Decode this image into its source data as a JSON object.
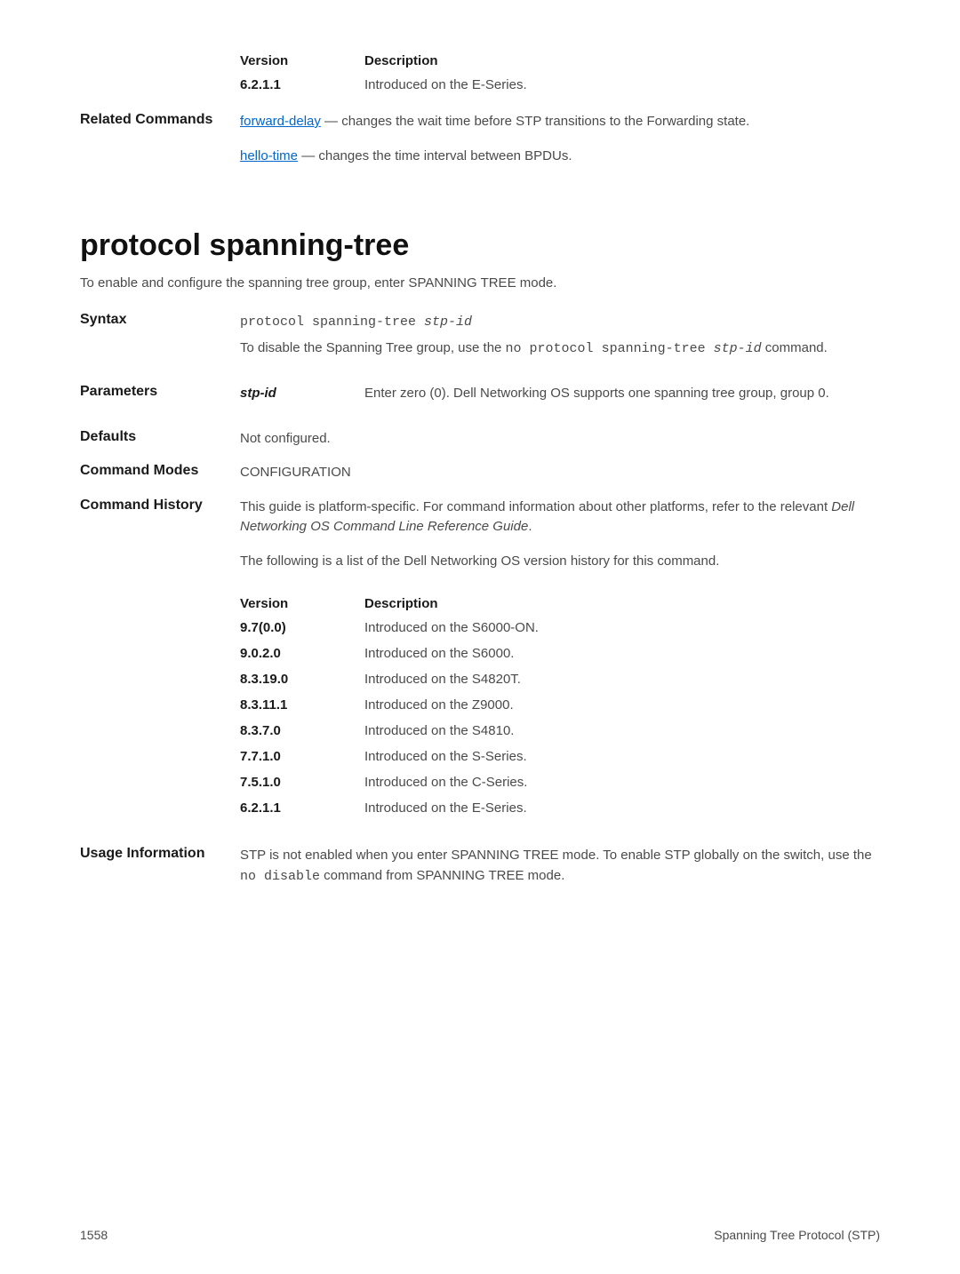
{
  "top": {
    "vh_header_version": "Version",
    "vh_header_desc": "Description",
    "vh_rows": [
      {
        "ver": "6.2.1.1",
        "desc": "Introduced on the E-Series."
      }
    ],
    "related_label": "Related Commands",
    "related1_link": "forward-delay",
    "related1_rest": " — changes the wait time before STP transitions to the Forwarding state.",
    "related2_link": "hello-time",
    "related2_rest": " — changes the time interval between BPDUs."
  },
  "section_title": "protocol spanning-tree",
  "intro": "To enable and configure the spanning tree group, enter SPANNING TREE mode.",
  "syntax": {
    "label": "Syntax",
    "cmd_prefix": "protocol spanning-tree ",
    "cmd_italic": "stp-id",
    "desc_pre": "To disable the Spanning Tree group, use the ",
    "desc_mono": "no protocol spanning-tree ",
    "desc_mono_italic": "stp-id",
    "desc_post": " command."
  },
  "parameters": {
    "label": "Parameters",
    "name": "stp-id",
    "desc": "Enter zero (0). Dell Networking OS supports one spanning tree group, group 0."
  },
  "defaults": {
    "label": "Defaults",
    "value": "Not configured."
  },
  "cmd_modes": {
    "label": "Command Modes",
    "value": "CONFIGURATION"
  },
  "cmd_history": {
    "label": "Command History",
    "p1_pre": "This guide is platform-specific. For command information about other platforms, refer to the relevant ",
    "p1_italic": "Dell Networking OS Command Line Reference Guide",
    "p1_post": ".",
    "p2": "The following is a list of the Dell Networking OS version history for this command.",
    "vh_header_version": "Version",
    "vh_header_desc": "Description",
    "rows": [
      {
        "ver": "9.7(0.0)",
        "desc": "Introduced on the S6000-ON."
      },
      {
        "ver": "9.0.2.0",
        "desc": "Introduced on the S6000."
      },
      {
        "ver": "8.3.19.0",
        "desc": "Introduced on the S4820T."
      },
      {
        "ver": "8.3.11.1",
        "desc": "Introduced on the Z9000."
      },
      {
        "ver": "8.3.7.0",
        "desc": "Introduced on the S4810."
      },
      {
        "ver": "7.7.1.0",
        "desc": "Introduced on the S-Series."
      },
      {
        "ver": "7.5.1.0",
        "desc": "Introduced on the C-Series."
      },
      {
        "ver": "6.2.1.1",
        "desc": "Introduced on the E-Series."
      }
    ]
  },
  "usage": {
    "label": "Usage Information",
    "desc_pre": "STP is not enabled when you enter SPANNING TREE mode. To enable STP globally on the switch, use the ",
    "desc_mono": "no disable",
    "desc_post": " command from SPANNING TREE mode."
  },
  "footer": {
    "page": "1558",
    "title": "Spanning Tree Protocol (STP)"
  }
}
